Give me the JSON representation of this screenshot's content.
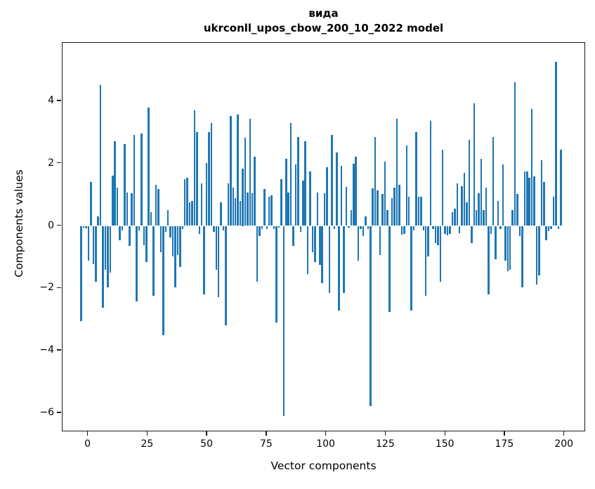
{
  "figure": {
    "title_line1": "вида",
    "title_line2": "ukrconll_upos_cbow_200_10_2022 model",
    "xlabel": "Vector components",
    "ylabel": "Components values"
  },
  "chart_data": {
    "type": "bar",
    "title": "вида",
    "subtitle": "ukrconll_upos_cbow_200_10_2022 model",
    "xlabel": "Vector components",
    "ylabel": "Components values",
    "bar_color": "#1f77b4",
    "grid": false,
    "legend": "none",
    "n_bars": 200,
    "x_ticks": [
      0,
      25,
      50,
      75,
      100,
      125,
      150,
      175,
      200
    ],
    "y_ticks": [
      4,
      2,
      0,
      -2,
      -4,
      -6
    ],
    "xlim": [
      -10.5,
      210.5
    ],
    "ylim": [
      -6.57,
      5.82
    ],
    "values": [
      -3.05,
      -0.05,
      -0.08,
      -1.12,
      1.41,
      -1.22,
      -1.78,
      0.3,
      4.51,
      -2.62,
      -1.4,
      -1.97,
      -1.5,
      1.6,
      2.72,
      1.22,
      -0.47,
      -0.15,
      2.63,
      1.08,
      -0.65,
      1.04,
      2.91,
      -2.43,
      -0.15,
      2.96,
      -0.61,
      -1.17,
      3.8,
      0.45,
      -2.25,
      1.32,
      1.18,
      -0.84,
      -3.51,
      -0.2,
      0.5,
      -0.37,
      -0.98,
      -1.97,
      -0.93,
      -1.31,
      -0.1,
      1.5,
      1.55,
      0.75,
      0.8,
      3.71,
      3.01,
      -0.25,
      1.36,
      -2.2,
      2.02,
      3.01,
      3.29,
      -0.2,
      -1.4,
      -2.29,
      0.75,
      -0.15,
      -3.18,
      1.36,
      3.52,
      1.22,
      0.9,
      3.57,
      0.8,
      1.83,
      2.82,
      1.08,
      3.43,
      1.04,
      2.21,
      -1.78,
      -0.32,
      -0.1,
      1.18,
      -0.1,
      0.94,
      0.99,
      -0.1,
      -3.09,
      -0.05,
      1.5,
      -6.1,
      2.16,
      1.08,
      3.29,
      -0.65,
      1.97,
      2.86,
      -0.2,
      1.46,
      2.72,
      -1.54,
      1.74,
      -0.84,
      -1.17,
      1.08,
      -1.26,
      -1.83,
      1.04,
      1.88,
      -2.15,
      2.91,
      -0.1,
      2.35,
      -2.72,
      1.93,
      -2.15,
      1.24,
      -0.05,
      0.5,
      1.99,
      2.22,
      -1.12,
      -0.1,
      -0.32,
      0.3,
      -0.1,
      -5.78,
      1.2,
      2.86,
      1.13,
      -0.93,
      1.02,
      2.07,
      0.5,
      -2.76,
      0.9,
      1.22,
      3.43,
      1.32,
      -0.28,
      -0.26,
      2.58,
      0.94,
      -2.72,
      -0.15,
      3.01,
      0.94,
      0.94,
      -0.15,
      -2.25,
      -0.98,
      3.36,
      -0.1,
      -0.56,
      -0.61,
      -1.78,
      2.44,
      -0.25,
      -0.3,
      -0.25,
      0.45,
      0.55,
      1.36,
      -0.23,
      1.27,
      1.69,
      0.75,
      2.77,
      -0.56,
      3.94,
      0.5,
      1.04,
      2.16,
      0.5,
      1.22,
      -2.2,
      -0.25,
      2.86,
      -1.07,
      0.8,
      -0.1,
      1.96,
      -1.12,
      -1.45,
      -1.4,
      0.5,
      4.6,
      1.02,
      -0.32,
      -1.97,
      1.74,
      1.74,
      1.55,
      3.76,
      1.58,
      -1.87,
      -1.59,
      2.11,
      1.41,
      -0.47,
      -0.18,
      -0.1,
      0.94,
      5.26,
      -0.1,
      2.44
    ]
  }
}
